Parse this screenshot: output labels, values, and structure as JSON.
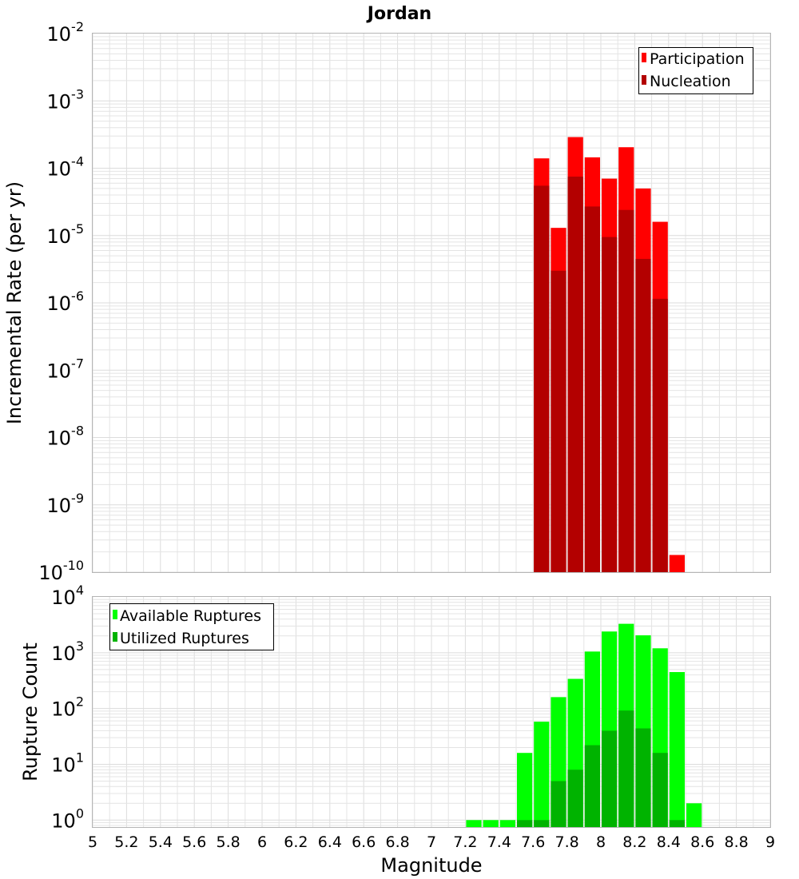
{
  "chart_data": [
    {
      "type": "bar",
      "title": "Jordan",
      "xlabel": "",
      "ylabel": "Incremental Rate (per yr)",
      "yscale": "log",
      "ylim": [
        1e-10,
        0.01
      ],
      "xlim": [
        5,
        9
      ],
      "grid": true,
      "legend_position": "top-right",
      "bar_width": 0.1,
      "series": [
        {
          "name": "Participation",
          "color": "#ff0000",
          "x": [
            7.65,
            7.75,
            7.85,
            7.95,
            8.05,
            8.15,
            8.25,
            8.35,
            8.45
          ],
          "values": [
            0.00014,
            1.3e-05,
            0.00029,
            0.000145,
            7e-05,
            0.000205,
            5e-05,
            1.6e-05,
            1.8e-10
          ]
        },
        {
          "name": "Nucleation",
          "color": "#b30000",
          "x": [
            7.65,
            7.75,
            7.85,
            7.95,
            8.05,
            8.15,
            8.25,
            8.35
          ],
          "values": [
            5.5e-05,
            3e-06,
            7.5e-05,
            2.7e-05,
            9.5e-06,
            2.4e-05,
            4.5e-06,
            1.15e-06
          ]
        }
      ],
      "y_ticks": [
        {
          "base": "10",
          "exp": "-2"
        },
        {
          "base": "10",
          "exp": "-3"
        },
        {
          "base": "10",
          "exp": "-4"
        },
        {
          "base": "10",
          "exp": "-5"
        },
        {
          "base": "10",
          "exp": "-6"
        },
        {
          "base": "10",
          "exp": "-7"
        },
        {
          "base": "10",
          "exp": "-8"
        },
        {
          "base": "10",
          "exp": "-9"
        },
        {
          "base": "10",
          "exp": "-10"
        }
      ]
    },
    {
      "type": "bar",
      "title": "",
      "xlabel": "Magnitude",
      "ylabel": "Rupture Count",
      "yscale": "log",
      "ylim": [
        0.75,
        10000
      ],
      "xlim": [
        5,
        9
      ],
      "grid": true,
      "legend_position": "top-left",
      "bar_width": 0.1,
      "series": [
        {
          "name": "Available Ruptures",
          "color": "#00ff00",
          "x": [
            7.25,
            7.35,
            7.45,
            7.55,
            7.65,
            7.75,
            7.85,
            7.95,
            8.05,
            8.15,
            8.25,
            8.35,
            8.45,
            8.55
          ],
          "values": [
            1,
            1,
            1,
            16,
            58,
            160,
            340,
            1050,
            2400,
            3300,
            2050,
            1200,
            450,
            2
          ]
        },
        {
          "name": "Utilized Ruptures",
          "color": "#00b300",
          "x": [
            7.55,
            7.65,
            7.75,
            7.85,
            7.95,
            8.05,
            8.15,
            8.25,
            8.35,
            8.45
          ],
          "values": [
            1,
            1,
            5,
            8,
            22,
            40,
            92,
            44,
            16,
            1
          ]
        }
      ],
      "y_ticks": [
        {
          "base": "10",
          "exp": "4"
        },
        {
          "base": "10",
          "exp": "3"
        },
        {
          "base": "10",
          "exp": "2"
        },
        {
          "base": "10",
          "exp": "1"
        },
        {
          "base": "10",
          "exp": "0"
        }
      ],
      "x_ticks": [
        "5",
        "5.2",
        "5.4",
        "5.6",
        "5.8",
        "6",
        "6.2",
        "6.4",
        "6.6",
        "6.8",
        "7",
        "7.2",
        "7.4",
        "7.6",
        "7.8",
        "8",
        "8.2",
        "8.4",
        "8.6",
        "8.8",
        "9"
      ]
    }
  ]
}
